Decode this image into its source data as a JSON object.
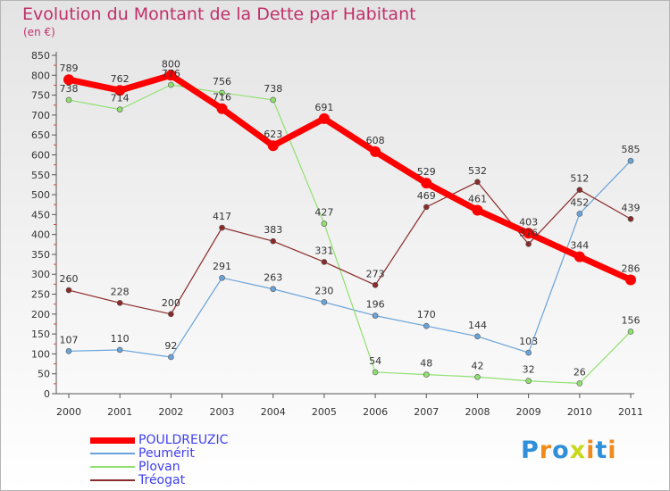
{
  "chart_data": {
    "type": "line",
    "title": "Evolution du Montant de la Dette par Habitant",
    "subtitle": "(en €)",
    "x": [
      "2000",
      "2001",
      "2002",
      "2003",
      "2004",
      "2005",
      "2006",
      "2007",
      "2008",
      "2009",
      "2010",
      "2011"
    ],
    "y_ticks": [
      "0",
      "50",
      "100",
      "150",
      "200",
      "250",
      "300",
      "350",
      "400",
      "450",
      "500",
      "550",
      "600",
      "650",
      "700",
      "750",
      "800",
      "850"
    ],
    "ylim": [
      0,
      850
    ],
    "grid": false,
    "legend_position": "bottom-left",
    "series": [
      {
        "name": "POULDREUZIC",
        "color": "#ff0000",
        "emphasis": true,
        "values": [
          789,
          762,
          800,
          716,
          623,
          691,
          608,
          529,
          461,
          403,
          344,
          286
        ]
      },
      {
        "name": "Peumérit",
        "color": "#6aa3d8",
        "emphasis": false,
        "values": [
          107,
          110,
          92,
          291,
          263,
          230,
          196,
          170,
          144,
          103,
          452,
          585
        ]
      },
      {
        "name": "Plovan",
        "color": "#90e070",
        "emphasis": false,
        "values": [
          738,
          714,
          776,
          756,
          738,
          427,
          54,
          48,
          42,
          32,
          26,
          156
        ]
      },
      {
        "name": "Tréogat",
        "color": "#8a2a2a",
        "emphasis": false,
        "values": [
          260,
          228,
          200,
          417,
          383,
          331,
          273,
          469,
          532,
          376,
          512,
          439
        ]
      }
    ]
  },
  "logo": {
    "text": "Proxiti",
    "letters": [
      {
        "ch": "P",
        "color": "#2f8fd8"
      },
      {
        "ch": "r",
        "color": "#f08a1c"
      },
      {
        "ch": "o",
        "color": "#2f8fd8"
      },
      {
        "ch": "x",
        "color": "#c8d81c"
      },
      {
        "ch": "i",
        "color": "#f08a1c"
      },
      {
        "ch": "t",
        "color": "#2f8fd8"
      },
      {
        "ch": "i",
        "color": "#f08a1c"
      }
    ]
  }
}
